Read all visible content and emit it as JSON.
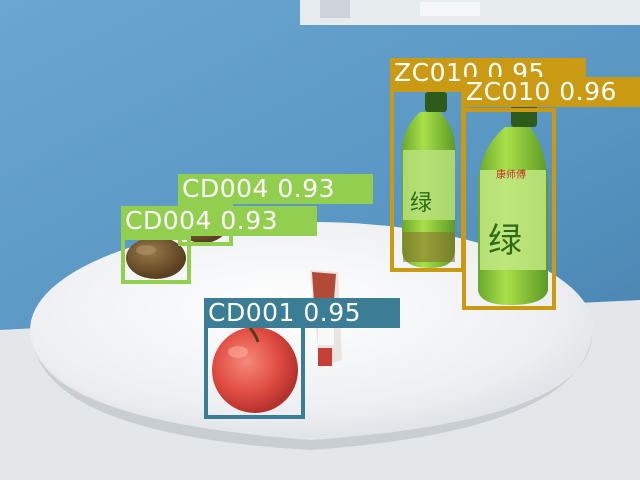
{
  "image": {
    "description_tag": "object-detection-result",
    "colors": {
      "wall": "#4f8fbd",
      "table": "#f2f3f5",
      "cd001": "#3b7d95",
      "cd004": "#92cf4f",
      "zc010": "#c99a12"
    }
  },
  "detections": [
    {
      "label": "ZC010 0.95",
      "class": "ZC010",
      "score": 0.95
    },
    {
      "label": "ZC010 0.96",
      "class": "ZC010",
      "score": 0.96
    },
    {
      "label": "CD004 0.93",
      "class": "CD004",
      "score": 0.93
    },
    {
      "label": "CD004 0.93",
      "class": "CD004",
      "score": 0.93
    },
    {
      "label": "CD001 0.95",
      "class": "CD001",
      "score": 0.95
    }
  ]
}
